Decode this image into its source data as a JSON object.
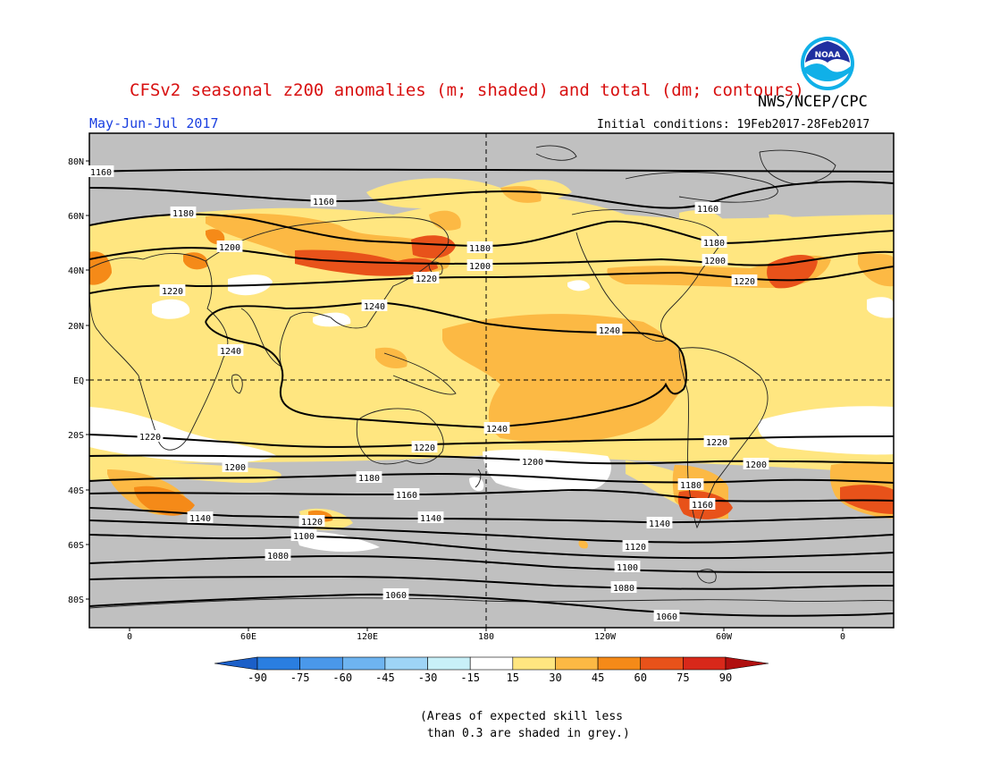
{
  "header": {
    "title": "CFSv2 seasonal z200 anomalies (m; shaded) and total (dm; contours)",
    "org": "NWS/NCEP/CPC",
    "period": "May-Jun-Jul 2017",
    "initial_conditions": "Initial conditions: 19Feb2017-28Feb2017"
  },
  "logo": {
    "icon": "noaa-logo",
    "text": "NOAA"
  },
  "colors": {
    "ocean_grey": "#c0c0c0",
    "land_line": "#202020",
    "c15": "#ffe680",
    "c30": "#fcb944",
    "c45": "#f58a18",
    "c60": "#e8521a",
    "white": "#ffffff"
  },
  "map": {
    "lat_labels": [
      "80N",
      "60N",
      "40N",
      "20N",
      "EQ",
      "20S",
      "40S",
      "60S",
      "80S"
    ],
    "lon_labels": [
      "0",
      "60E",
      "120E",
      "180",
      "120W",
      "60W",
      "0"
    ],
    "contour_labels": [
      "1160",
      "1160",
      "1160",
      "1180",
      "1180",
      "1180",
      "1200",
      "1200",
      "1200",
      "1220",
      "1220",
      "1220",
      "1240",
      "1240",
      "1240",
      "1240",
      "1220",
      "1220",
      "1220",
      "1200",
      "1200",
      "1200",
      "1180",
      "1180",
      "1160",
      "1160",
      "1140",
      "1140",
      "1140",
      "1120",
      "1120",
      "1100",
      "1100",
      "1080",
      "1080",
      "1060",
      "1060"
    ]
  },
  "colorbar": {
    "ticks": [
      "-90",
      "-75",
      "-60",
      "-45",
      "-30",
      "-15",
      "15",
      "30",
      "45",
      "60",
      "75",
      "90"
    ],
    "colors": [
      "#1b5fc8",
      "#2a7ee0",
      "#4a98ea",
      "#6eb4f0",
      "#9ed4f6",
      "#c8f0f8",
      "#ffffff",
      "#ffe680",
      "#fcb944",
      "#f58a18",
      "#e8521a",
      "#d8281a",
      "#b01010"
    ]
  },
  "footnote": "(Areas of expected skill less\n than 0.3 are shaded in grey.)"
}
